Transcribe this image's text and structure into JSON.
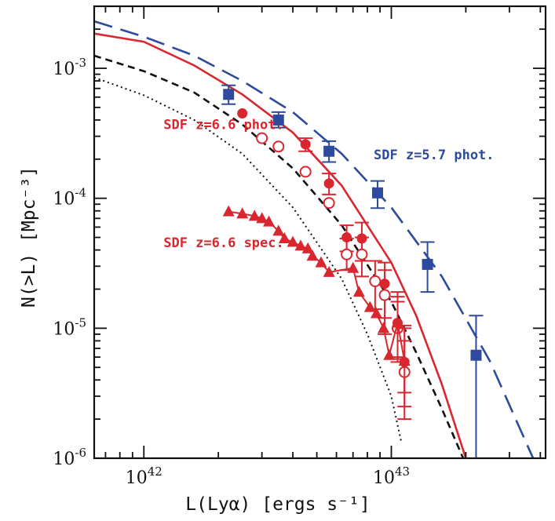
{
  "chart_data": {
    "type": "scatter",
    "xlabel": "L(Lyα) [ergs s⁻¹]",
    "ylabel": "N(>L) [Mpc⁻³]",
    "x_scale": "log",
    "y_scale": "log",
    "xlim": [
      6.3e+41,
      4.2e+43
    ],
    "ylim": [
      1e-06,
      0.003
    ],
    "x_ticks": [
      {
        "value": 1e+42,
        "base": "10",
        "exp": "42"
      },
      {
        "value": 1e+43,
        "base": "10",
        "exp": "43"
      }
    ],
    "y_ticks": [
      {
        "value": 0.001,
        "base": "10",
        "exp": "-3"
      },
      {
        "value": 0.0001,
        "base": "10",
        "exp": "-4"
      },
      {
        "value": 1e-05,
        "base": "10",
        "exp": "-5"
      },
      {
        "value": 1e-06,
        "base": "10",
        "exp": "-6"
      }
    ],
    "colors": {
      "blue": "#2e4a9e",
      "red": "#d9262f",
      "black": "#111111"
    },
    "annotations": [
      {
        "text": "SDF z=6.6 phot.",
        "x": 1.2e+42,
        "y": 0.00034,
        "color": "#d9262f"
      },
      {
        "text": "SDF z=5.7 phot.",
        "x": 1.3e+43,
        "y": 0.0002,
        "color": "#2e4a9e"
      },
      {
        "text": "SDF z=6.6 spec.",
        "x": 1.2e+42,
        "y": 4.2e-05,
        "color": "#d9262f"
      }
    ],
    "lines": [
      {
        "name": "blue-dashed-model",
        "style": "long-dash",
        "color": "#2e4a9e",
        "x": [
          6.3e+41,
          1e+42,
          1.6e+42,
          2.5e+42,
          4e+42,
          6.3e+42,
          1e+43,
          1.6e+43,
          2.5e+43,
          4e+43
        ],
        "y": [
          0.0023,
          0.00175,
          0.00125,
          0.0008,
          0.00046,
          0.00022,
          8.5e-05,
          2.5e-05,
          5.6e-06,
          7.5e-07
        ]
      },
      {
        "name": "red-solid-model",
        "style": "solid",
        "color": "#d9262f",
        "x": [
          6.3e+41,
          1e+42,
          1.6e+42,
          2.5e+42,
          4e+42,
          6.3e+42,
          1e+43,
          1.26e+43,
          1.6e+43,
          2e+43
        ],
        "y": [
          0.00185,
          0.0016,
          0.00105,
          0.00063,
          0.00032,
          0.000125,
          3.2e-05,
          1.25e-05,
          3.7e-06,
          1e-06
        ]
      },
      {
        "name": "black-dashed-model",
        "style": "short-dash",
        "color": "#111111",
        "x": [
          6.3e+41,
          1e+42,
          1.6e+42,
          2.5e+42,
          4e+42,
          6.3e+42,
          1e+43,
          1.26e+43,
          1.6e+43,
          1.95e+43
        ],
        "y": [
          0.00125,
          0.00095,
          0.00065,
          0.00037,
          0.00017,
          6.2e-05,
          1.6e-05,
          6.5e-06,
          2.4e-06,
          1e-06
        ]
      },
      {
        "name": "black-dotted-model",
        "style": "dotted",
        "color": "#111111",
        "x": [
          6.3e+41,
          1e+42,
          1.6e+42,
          2.5e+42,
          4e+42,
          6.3e+42,
          8e+42,
          1e+43,
          1.1e+43
        ],
        "y": [
          0.00085,
          0.00062,
          0.0004,
          0.00022,
          8.5e-05,
          2.4e-05,
          9e-06,
          3e-06,
          1.3e-06
        ]
      }
    ],
    "series": [
      {
        "name": "SDF z=5.7 phot.",
        "marker": "filled-square",
        "color": "#2e4a9e",
        "connect": false,
        "x": [
          2.2e+42,
          3.5e+42,
          5.6e+42,
          8.8e+42,
          1.4e+43,
          2.2e+43
        ],
        "y": [
          0.00063,
          0.0004,
          0.00023,
          0.00011,
          3.1e-05,
          6.2e-06
        ],
        "err_lo": [
          0.00053,
          0.00035,
          0.00019,
          8.4e-05,
          1.9e-05,
          1e-06
        ],
        "err_hi": [
          0.00074,
          0.00046,
          0.000275,
          0.000136,
          4.6e-05,
          1.25e-05
        ]
      },
      {
        "name": "SDF z=6.6 phot. (filled)",
        "marker": "filled-circle",
        "color": "#d9262f",
        "connect": false,
        "x": [
          2.5e+42,
          4.5e+42,
          5.6e+42,
          6.6e+42,
          7.6e+42,
          9.4e+42,
          1.06e+43,
          1.13e+43
        ],
        "y": [
          0.00045,
          0.00026,
          0.00013,
          5e-05,
          4.9e-05,
          2.2e-05,
          1.1e-05,
          5.5e-06
        ],
        "err_lo": [
          null,
          0.00023,
          0.000107,
          3.9e-05,
          3.3e-05,
          1.2e-05,
          6e-06,
          2.5e-06
        ],
        "err_hi": [
          null,
          0.00029,
          0.000155,
          6.2e-05,
          6.5e-05,
          3.2e-05,
          1.75e-05,
          1.05e-05
        ]
      },
      {
        "name": "SDF z=6.6 phot. (open)",
        "marker": "open-circle",
        "color": "#d9262f",
        "connect": false,
        "x": [
          3e+42,
          3.5e+42,
          4.5e+42,
          5.6e+42,
          6.6e+42,
          7.6e+42,
          8.6e+42,
          9.4e+42,
          1.06e+43,
          1.13e+43
        ],
        "y": [
          0.00029,
          0.00025,
          0.00016,
          9.2e-05,
          3.7e-05,
          3.7e-05,
          2.3e-05,
          1.8e-05,
          1e-05,
          4.6e-06
        ],
        "err_lo": [
          null,
          null,
          null,
          null,
          2.8e-05,
          2.5e-05,
          1.4e-05,
          9e-06,
          5.5e-06,
          2e-06
        ],
        "err_hi": [
          null,
          null,
          null,
          null,
          4.9e-05,
          5e-05,
          3.3e-05,
          2.8e-05,
          1.6e-05,
          8e-06
        ]
      },
      {
        "name": "SDF z=6.6 spec.",
        "marker": "filled-triangle",
        "color": "#d9262f",
        "connect": true,
        "x": [
          2.2e+42,
          2.5e+42,
          2.8e+42,
          3e+42,
          3.2e+42,
          3.5e+42,
          3.7e+42,
          4e+42,
          4.3e+42,
          4.6e+42,
          4.8e+42,
          5.2e+42,
          5.6e+42,
          7e+42,
          7.4e+42,
          8.2e+42,
          8.7e+42,
          9.3e+42,
          9.8e+42,
          1.06e+43,
          1.13e+43
        ],
        "y": [
          7.9e-05,
          7.6e-05,
          7.3e-05,
          7e-05,
          6.6e-05,
          5.6e-05,
          4.9e-05,
          4.6e-05,
          4.3e-05,
          4.1e-05,
          3.6e-05,
          3.2e-05,
          2.7e-05,
          2.9e-05,
          1.9e-05,
          1.45e-05,
          1.3e-05,
          1e-05,
          6.2e-06,
          1.1e-05,
          5.6e-06
        ],
        "err_lo": [
          null,
          null,
          null,
          null,
          null,
          null,
          null,
          null,
          null,
          null,
          null,
          null,
          null,
          null,
          null,
          null,
          null,
          null,
          null,
          5.8e-06,
          3.2e-06
        ],
        "err_hi": [
          null,
          null,
          null,
          null,
          null,
          null,
          null,
          null,
          null,
          null,
          null,
          null,
          null,
          null,
          null,
          null,
          null,
          null,
          null,
          1.9e-05,
          1e-05
        ]
      }
    ]
  }
}
